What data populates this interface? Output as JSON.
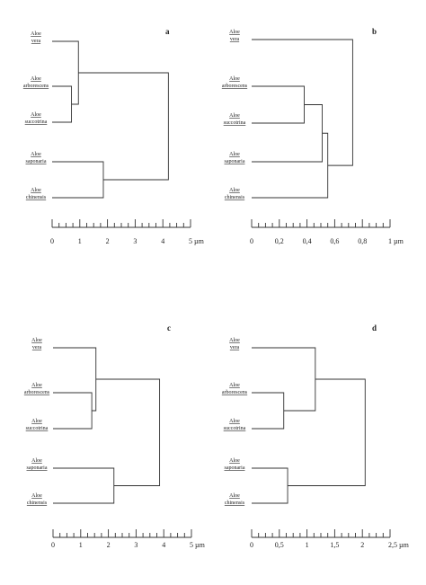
{
  "panels": [
    {
      "id": "a",
      "letter": "a",
      "taxa": [
        {
          "top": "Aloe",
          "bottom": "vera"
        },
        {
          "top": "Aloe",
          "bottom": "arborescens"
        },
        {
          "top": "Aloe",
          "bottom": "succotrina"
        },
        {
          "top": "Aloe",
          "bottom": "saponaria"
        },
        {
          "top": "Aloe",
          "bottom": "chinensis"
        }
      ],
      "axis": {
        "min": 0,
        "max": 5,
        "minor_step": 0.25,
        "major_ticks": [
          0,
          1,
          2,
          3,
          4,
          5
        ],
        "tick_labels": [
          "0",
          "1",
          "2",
          "3",
          "4",
          "5 µm"
        ]
      },
      "merges": [
        {
          "a": "t1",
          "b": "t2",
          "h": 0.7
        },
        {
          "a": "n1",
          "b": "t0",
          "h": 0.95
        },
        {
          "a": "t3",
          "b": "t4",
          "h": 1.85
        },
        {
          "a": "n2",
          "b": "n3",
          "h": 4.2
        }
      ]
    },
    {
      "id": "b",
      "letter": "b",
      "taxa": [
        {
          "top": "Aloe",
          "bottom": "vera"
        },
        {
          "top": "Aloe",
          "bottom": "arborescens"
        },
        {
          "top": "Aloe",
          "bottom": "succotrina"
        },
        {
          "top": "Aloe",
          "bottom": "saponaria"
        },
        {
          "top": "Aloe",
          "bottom": "chinensis"
        }
      ],
      "axis": {
        "min": 0,
        "max": 1,
        "minor_step": 0.05,
        "major_ticks": [
          0,
          0.2,
          0.4,
          0.6,
          0.8,
          1
        ],
        "tick_labels": [
          "0",
          "0,2",
          "0,4",
          "0,6",
          "0,8",
          "1 µm"
        ]
      },
      "merges": [
        {
          "a": "t1",
          "b": "t2",
          "h": 0.38
        },
        {
          "a": "n1",
          "b": "t3",
          "h": 0.51
        },
        {
          "a": "n2",
          "b": "t4",
          "h": 0.55
        },
        {
          "a": "t0",
          "b": "n3",
          "h": 0.73
        }
      ]
    },
    {
      "id": "c",
      "letter": "c",
      "taxa": [
        {
          "top": "Aloe",
          "bottom": "vera"
        },
        {
          "top": "Aloe",
          "bottom": "arborescens"
        },
        {
          "top": "Aloe",
          "bottom": "succotrina"
        },
        {
          "top": "Aloe",
          "bottom": "saponaria"
        },
        {
          "top": "Aloe",
          "bottom": "chinensis"
        }
      ],
      "axis": {
        "min": 0,
        "max": 5,
        "minor_step": 0.25,
        "major_ticks": [
          0,
          1,
          2,
          3,
          4,
          5
        ],
        "tick_labels": [
          "0",
          "1",
          "2",
          "3",
          "4",
          "5 µm"
        ]
      },
      "merges": [
        {
          "a": "t1",
          "b": "t2",
          "h": 1.4
        },
        {
          "a": "t0",
          "b": "n1",
          "h": 1.55
        },
        {
          "a": "t3",
          "b": "t4",
          "h": 2.2
        },
        {
          "a": "n2",
          "b": "n3",
          "h": 3.85
        }
      ]
    },
    {
      "id": "d",
      "letter": "d",
      "taxa": [
        {
          "top": "Aloe",
          "bottom": "vera"
        },
        {
          "top": "Aloe",
          "bottom": "arborescens"
        },
        {
          "top": "Aloe",
          "bottom": "succotrina"
        },
        {
          "top": "Aloe",
          "bottom": "saponaria"
        },
        {
          "top": "Aloe",
          "bottom": "chinensis"
        }
      ],
      "axis": {
        "min": 0,
        "max": 2.5,
        "minor_step": 0.125,
        "major_ticks": [
          0,
          0.5,
          1,
          1.5,
          2,
          2.5
        ],
        "tick_labels": [
          "0",
          "0,5",
          "1",
          "1,5",
          "2",
          "2,5 µm"
        ]
      },
      "merges": [
        {
          "a": "t1",
          "b": "t2",
          "h": 0.58
        },
        {
          "a": "t0",
          "b": "n1",
          "h": 1.15
        },
        {
          "a": "t3",
          "b": "t4",
          "h": 0.65
        },
        {
          "a": "n2",
          "b": "n3",
          "h": 2.05
        }
      ]
    }
  ]
}
